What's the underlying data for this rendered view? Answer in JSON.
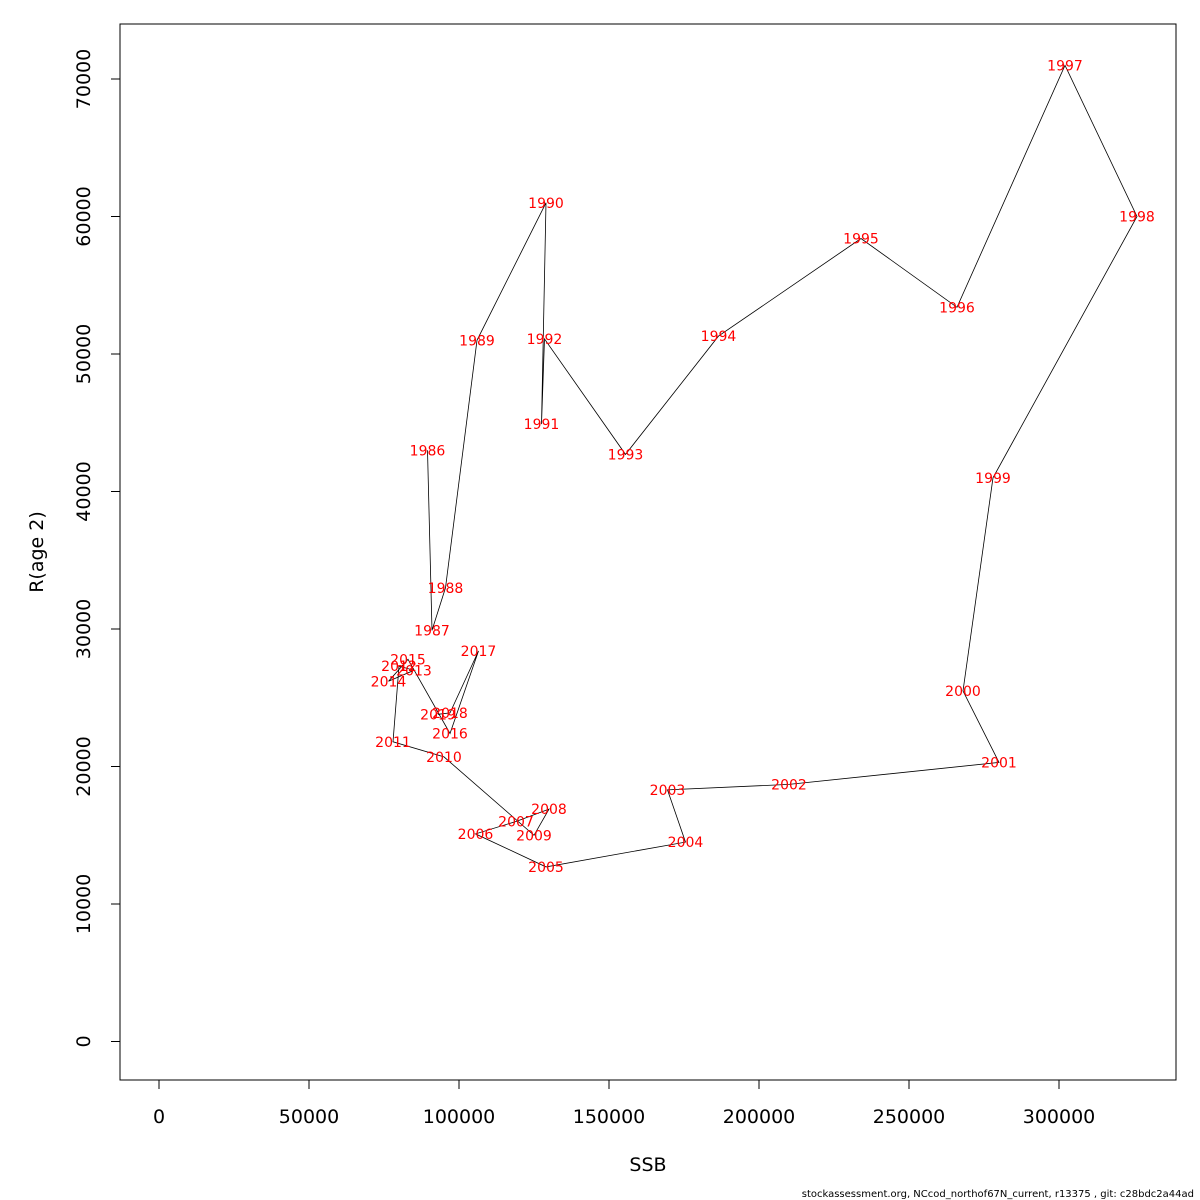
{
  "footer": "stockassessment.org, NCcod_northof67N_current, r13375 , git: c28bdc2a44ad",
  "chart_data": {
    "type": "line",
    "xlabel": "SSB",
    "ylabel": "R(age 2)",
    "xlim": [
      -13000,
      339000
    ],
    "ylim": [
      -2800,
      74000
    ],
    "xticks": [
      0,
      50000,
      100000,
      150000,
      200000,
      250000,
      300000
    ],
    "yticks": [
      0,
      10000,
      20000,
      30000,
      40000,
      50000,
      60000,
      70000
    ],
    "grid": false,
    "line_color": "#000000",
    "label_color": "#ff0000",
    "points": [
      {
        "year": "1986",
        "ssb": 89500,
        "r": 43000
      },
      {
        "year": "1987",
        "ssb": 91000,
        "r": 29900
      },
      {
        "year": "1988",
        "ssb": 95500,
        "r": 33000
      },
      {
        "year": "1989",
        "ssb": 106000,
        "r": 51000
      },
      {
        "year": "1990",
        "ssb": 129000,
        "r": 61000
      },
      {
        "year": "1991",
        "ssb": 127500,
        "r": 44900
      },
      {
        "year": "1992",
        "ssb": 128500,
        "r": 51100
      },
      {
        "year": "1993",
        "ssb": 155500,
        "r": 42700
      },
      {
        "year": "1994",
        "ssb": 186500,
        "r": 51300
      },
      {
        "year": "1995",
        "ssb": 234000,
        "r": 58400
      },
      {
        "year": "1996",
        "ssb": 266000,
        "r": 53400
      },
      {
        "year": "1997",
        "ssb": 302000,
        "r": 71000
      },
      {
        "year": "1998",
        "ssb": 326000,
        "r": 60000
      },
      {
        "year": "1999",
        "ssb": 278000,
        "r": 41000
      },
      {
        "year": "2000",
        "ssb": 268000,
        "r": 25500
      },
      {
        "year": "2001",
        "ssb": 280000,
        "r": 20300
      },
      {
        "year": "2002",
        "ssb": 210000,
        "r": 18700
      },
      {
        "year": "2003",
        "ssb": 169500,
        "r": 18300
      },
      {
        "year": "2004",
        "ssb": 175500,
        "r": 14500
      },
      {
        "year": "2005",
        "ssb": 129000,
        "r": 12700
      },
      {
        "year": "2006",
        "ssb": 105500,
        "r": 15100
      },
      {
        "year": "2007",
        "ssb": 119000,
        "r": 16000
      },
      {
        "year": "2008",
        "ssb": 130000,
        "r": 16900
      },
      {
        "year": "2009",
        "ssb": 125000,
        "r": 15000
      },
      {
        "year": "2010",
        "ssb": 95000,
        "r": 20700
      },
      {
        "year": "2011",
        "ssb": 78000,
        "r": 21800
      },
      {
        "year": "2012",
        "ssb": 80000,
        "r": 27300
      },
      {
        "year": "2013",
        "ssb": 85000,
        "r": 27000
      },
      {
        "year": "2014",
        "ssb": 76500,
        "r": 26200
      },
      {
        "year": "2015",
        "ssb": 83000,
        "r": 27800
      },
      {
        "year": "2016",
        "ssb": 97000,
        "r": 22400
      },
      {
        "year": "2017",
        "ssb": 106500,
        "r": 28400
      },
      {
        "year": "2018",
        "ssb": 97000,
        "r": 23900
      },
      {
        "year": "2019",
        "ssb": 93000,
        "r": 23800
      }
    ]
  }
}
